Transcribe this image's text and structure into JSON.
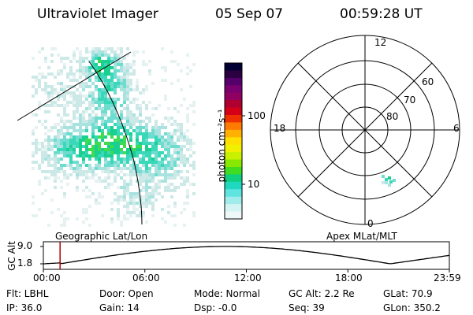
{
  "header": {
    "title": "Ultraviolet Imager",
    "date": "05 Sep 07",
    "time": "00:59:28 UT"
  },
  "colorbar": {
    "label": "photon cm⁻²s⁻¹",
    "ticks": [
      "100",
      "10"
    ],
    "colors": [
      "#000033",
      "#2a0040",
      "#55006a",
      "#7a0070",
      "#900060",
      "#b00030",
      "#d40018",
      "#ee3000",
      "#ff7a00",
      "#ffb000",
      "#ffe000",
      "#f0f000",
      "#c8f000",
      "#88e800",
      "#40dc20",
      "#10d080",
      "#20d8c0",
      "#60e4e0",
      "#a0ecec",
      "#d4f4f4",
      "#eef8f8"
    ]
  },
  "left_panel": {
    "caption": "Geographic Lat/Lon"
  },
  "right_panel": {
    "caption": "Apex MLat/MLT",
    "mlt_labels": [
      "12",
      "18",
      "6",
      "0"
    ],
    "lat_labels": [
      "60",
      "70",
      "80"
    ]
  },
  "altitude_plot": {
    "ylabel": "GC Alt",
    "yticks": [
      "9.0",
      "1.8"
    ],
    "xticks": [
      "00:00",
      "06:00",
      "12:00",
      "18:00",
      "23:59"
    ],
    "marker_time_hours": 0.99
  },
  "footer": {
    "row1": [
      "Flt: LBHL",
      "Door: Open",
      "Mode: Normal",
      "GC Alt: 2.2 Re",
      "GLat:  70.9"
    ],
    "row2": [
      "IP: 36.0",
      "Gain: 14",
      "Dsp:  -0.0",
      "Seq: 39",
      "GLon: 350.2"
    ]
  },
  "chart_data": [
    {
      "type": "heatmap",
      "title": "Ultraviolet Imager",
      "projection": "Geographic Lat/Lon",
      "colorbar_ticks": [
        100,
        10
      ],
      "colorbar_label": "photon cm-2s-1"
    },
    {
      "type": "heatmap",
      "projection": "Apex MLat/MLT",
      "mlt_labels": [
        "12",
        "18",
        "6",
        "0"
      ],
      "lat_circles": [
        60,
        70,
        80
      ]
    },
    {
      "type": "line",
      "ylabel": "GC Alt",
      "yticks": [
        9.0,
        1.8
      ],
      "xticks": [
        "00:00",
        "06:00",
        "12:00",
        "18:00",
        "23:59"
      ],
      "current_time": "00:59:28",
      "current_value": 2.2
    }
  ]
}
